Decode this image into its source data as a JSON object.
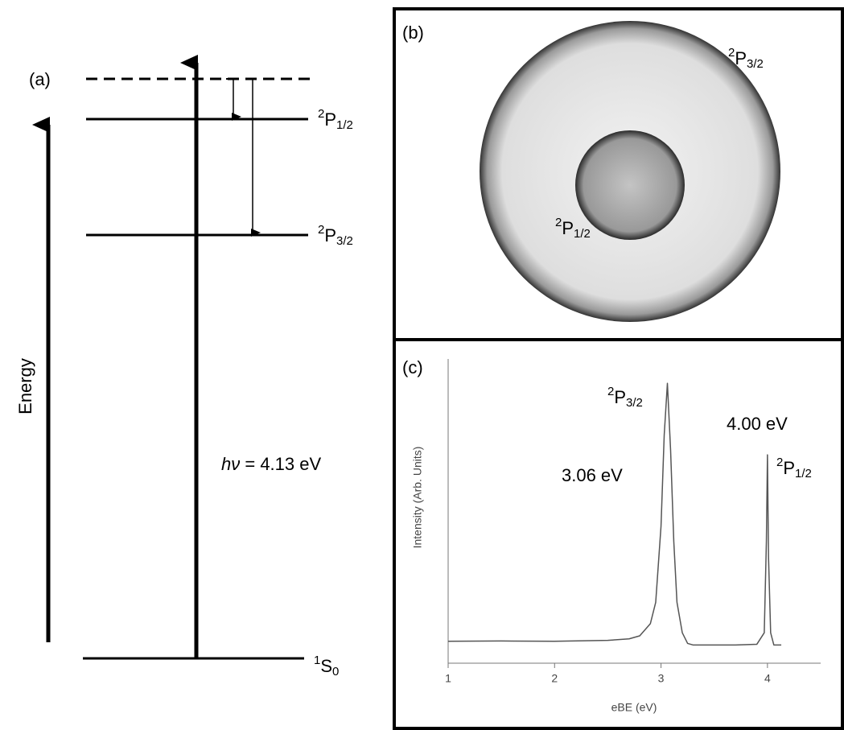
{
  "panel_a": {
    "tag": "(a)",
    "axis_label": "Energy",
    "levels": [
      {
        "sup": "2",
        "base": "P",
        "sub": "1/2"
      },
      {
        "sup": "2",
        "base": "P",
        "sub": "3/2"
      },
      {
        "sup": "1",
        "base": "S",
        "sub": "0"
      }
    ],
    "photon": {
      "italic": "hν",
      "rest": " = 4.13 eV"
    }
  },
  "panel_b": {
    "tag": "(b)",
    "outer": {
      "sup": "2",
      "base": "P",
      "sub": "3/2"
    },
    "inner": {
      "sup": "2",
      "base": "P",
      "sub": "1/2"
    }
  },
  "chart_data": {
    "type": "line",
    "tag": "(c)",
    "x_label": "eBE (eV)",
    "y_label": "Intensity (Arb. Units)",
    "x": [
      1.0,
      1.5,
      2.0,
      2.5,
      2.7,
      2.8,
      2.9,
      2.95,
      3.0,
      3.03,
      3.06,
      3.09,
      3.12,
      3.15,
      3.2,
      3.25,
      3.3,
      3.5,
      3.7,
      3.9,
      3.97,
      3.99,
      4.0,
      4.01,
      4.03,
      4.06,
      4.13
    ],
    "values": [
      0.072,
      0.073,
      0.072,
      0.075,
      0.08,
      0.09,
      0.13,
      0.2,
      0.45,
      0.75,
      0.92,
      0.7,
      0.4,
      0.2,
      0.1,
      0.065,
      0.06,
      0.06,
      0.06,
      0.062,
      0.1,
      0.4,
      0.685,
      0.35,
      0.1,
      0.06,
      0.06
    ],
    "color": "#555555",
    "xlim": [
      1,
      4.5
    ],
    "ylim": [
      0,
      1
    ],
    "xticks": [
      1,
      2,
      3,
      4
    ],
    "annotations": [
      {
        "sup": "2",
        "base": "P",
        "sub": "3/2"
      },
      {
        "text": "3.06 eV"
      },
      {
        "text": "4.00 eV"
      },
      {
        "sup": "2",
        "base": "P",
        "sub": "1/2"
      }
    ]
  }
}
